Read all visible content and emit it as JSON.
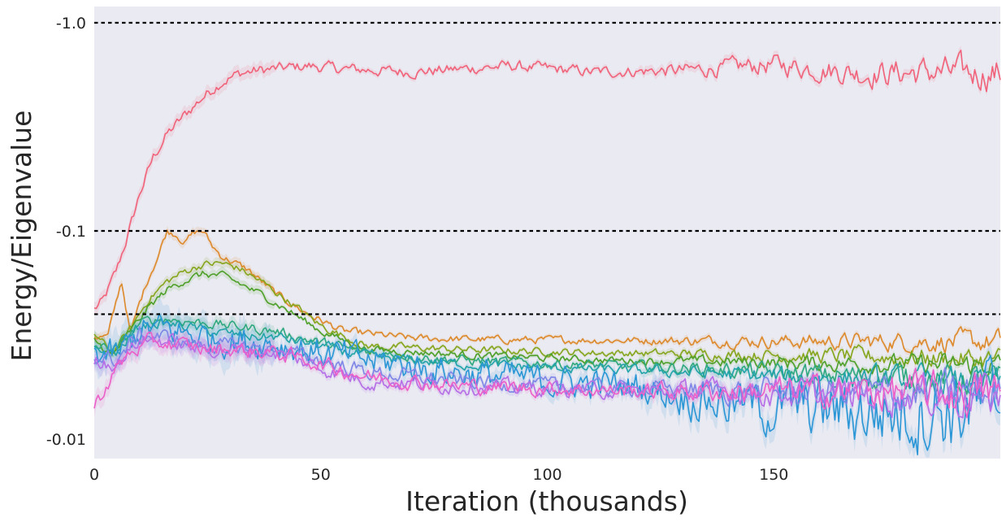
{
  "chart_data": {
    "type": "line",
    "title": "",
    "xlabel": "Iteration (thousands)",
    "ylabel": "Energy/Eigenvalue",
    "xlim": [
      0,
      200
    ],
    "x_ticks": [
      {
        "value": 0,
        "label": "0"
      },
      {
        "value": 50,
        "label": "50"
      },
      {
        "value": 100,
        "label": "100"
      },
      {
        "value": 150,
        "label": "150"
      }
    ],
    "y_scale": "log (negative values)",
    "y_ticks": [
      {
        "value": -1.0,
        "label": "-1.0"
      },
      {
        "value": -0.1,
        "label": "-0.1"
      },
      {
        "value": -0.01,
        "label": "-0.01"
      }
    ],
    "reference_lines": [
      -1.0,
      -0.1,
      -0.0398
    ],
    "grid": false,
    "background": "#eaeaf2",
    "legend": "none",
    "series": [
      {
        "color": "#f0637a",
        "band": true,
        "noise": 0.022,
        "x": [
          0,
          2,
          5,
          8,
          10,
          13,
          16,
          20,
          24,
          28,
          32,
          36,
          40,
          47,
          55,
          70,
          92,
          110,
          130,
          150,
          170,
          185,
          200
        ],
        "y": [
          -0.042,
          -0.046,
          -0.065,
          -0.105,
          -0.15,
          -0.225,
          -0.29,
          -0.36,
          -0.44,
          -0.52,
          -0.57,
          -0.59,
          -0.6,
          -0.62,
          -0.6,
          -0.58,
          -0.62,
          -0.58,
          -0.59,
          -0.63,
          -0.57,
          -0.58,
          -0.57
        ]
      },
      {
        "color": "#dd8a2c",
        "band": true,
        "noise": 0.015,
        "x": [
          0,
          3,
          6,
          8,
          10,
          12,
          14,
          16,
          18,
          20,
          22,
          24,
          26,
          28,
          30,
          34,
          40,
          47,
          55,
          70,
          90,
          120,
          150,
          200
        ],
        "y": [
          -0.031,
          -0.031,
          -0.058,
          -0.032,
          -0.045,
          -0.06,
          -0.075,
          -0.1,
          -0.097,
          -0.088,
          -0.098,
          -0.1,
          -0.085,
          -0.076,
          -0.072,
          -0.065,
          -0.05,
          -0.04,
          -0.033,
          -0.0305,
          -0.03,
          -0.0298,
          -0.0295,
          -0.0293
        ]
      },
      {
        "color": "#86a61e",
        "band": true,
        "noise": 0.015,
        "x": [
          0,
          4,
          8,
          12,
          16,
          20,
          24,
          28,
          32,
          38,
          44,
          50,
          60,
          80,
          110,
          140,
          170,
          200
        ],
        "y": [
          -0.032,
          -0.026,
          -0.034,
          -0.047,
          -0.057,
          -0.064,
          -0.069,
          -0.07,
          -0.066,
          -0.055,
          -0.044,
          -0.035,
          -0.028,
          -0.027,
          -0.026,
          -0.0255,
          -0.025,
          -0.024
        ]
      },
      {
        "color": "#4fa02a",
        "band": true,
        "noise": 0.015,
        "x": [
          0,
          4,
          8,
          12,
          16,
          20,
          24,
          28,
          32,
          38,
          44,
          50,
          60,
          80,
          110,
          140,
          170,
          200
        ],
        "y": [
          -0.03,
          -0.025,
          -0.033,
          -0.043,
          -0.052,
          -0.058,
          -0.062,
          -0.061,
          -0.056,
          -0.048,
          -0.04,
          -0.033,
          -0.027,
          -0.0255,
          -0.024,
          -0.0235,
          -0.023,
          -0.0225
        ]
      },
      {
        "color": "#2fa87f",
        "band": true,
        "noise": 0.02,
        "x": [
          0,
          5,
          10,
          15,
          20,
          25,
          30,
          35,
          40,
          50,
          60,
          80,
          100,
          130,
          150,
          170,
          185,
          200
        ],
        "y": [
          -0.028,
          -0.027,
          -0.036,
          -0.038,
          -0.037,
          -0.036,
          -0.035,
          -0.034,
          -0.033,
          -0.029,
          -0.026,
          -0.024,
          -0.023,
          -0.022,
          -0.021,
          -0.02,
          -0.0195,
          -0.019
        ]
      },
      {
        "color": "#22a3a9",
        "band": true,
        "noise": 0.02,
        "x": [
          0,
          5,
          10,
          15,
          20,
          25,
          30,
          35,
          40,
          50,
          60,
          80,
          100,
          130,
          150,
          170,
          185,
          200
        ],
        "y": [
          -0.027,
          -0.026,
          -0.035,
          -0.036,
          -0.035,
          -0.033,
          -0.032,
          -0.031,
          -0.031,
          -0.028,
          -0.025,
          -0.023,
          -0.022,
          -0.021,
          -0.02,
          -0.0195,
          -0.019,
          -0.0185
        ]
      },
      {
        "color": "#2a96d6",
        "band": true,
        "noise": 0.06,
        "x": [
          0,
          5,
          10,
          15,
          20,
          25,
          30,
          40,
          50,
          60,
          80,
          100,
          120,
          130,
          140,
          150,
          160,
          170,
          180,
          190,
          200
        ],
        "y": [
          -0.026,
          -0.025,
          -0.033,
          -0.034,
          -0.032,
          -0.031,
          -0.03,
          -0.029,
          -0.026,
          -0.024,
          -0.021,
          -0.019,
          -0.018,
          -0.016,
          -0.015,
          -0.014,
          -0.014,
          -0.0135,
          -0.0135,
          -0.014,
          -0.0145
        ]
      },
      {
        "color": "#7e86e6",
        "band": true,
        "noise": 0.03,
        "x": [
          0,
          5,
          10,
          15,
          20,
          25,
          30,
          40,
          50,
          60,
          80,
          100,
          120,
          140,
          160,
          180,
          200
        ],
        "y": [
          -0.025,
          -0.024,
          -0.032,
          -0.031,
          -0.029,
          -0.028,
          -0.028,
          -0.027,
          -0.024,
          -0.021,
          -0.019,
          -0.018,
          -0.0175,
          -0.017,
          -0.017,
          -0.0165,
          -0.0165
        ]
      },
      {
        "color": "#b56ee6",
        "band": true,
        "noise": 0.03,
        "x": [
          0,
          5,
          10,
          15,
          20,
          25,
          30,
          40,
          50,
          60,
          80,
          100,
          120,
          140,
          160,
          180,
          200
        ],
        "y": [
          -0.024,
          -0.023,
          -0.03,
          -0.03,
          -0.028,
          -0.027,
          -0.027,
          -0.026,
          -0.022,
          -0.019,
          -0.018,
          -0.0175,
          -0.017,
          -0.017,
          -0.0165,
          -0.0165,
          -0.016
        ]
      },
      {
        "color": "#ec5ec8",
        "band": true,
        "noise": 0.03,
        "x": [
          0,
          2,
          5,
          8,
          12,
          15,
          20,
          25,
          30,
          40,
          50,
          60,
          80,
          100,
          120,
          140,
          160,
          180,
          200
        ],
        "y": [
          -0.0143,
          -0.017,
          -0.022,
          -0.026,
          -0.029,
          -0.029,
          -0.028,
          -0.027,
          -0.027,
          -0.026,
          -0.023,
          -0.02,
          -0.018,
          -0.0175,
          -0.017,
          -0.017,
          -0.017,
          -0.0168,
          -0.0165
        ]
      }
    ]
  }
}
